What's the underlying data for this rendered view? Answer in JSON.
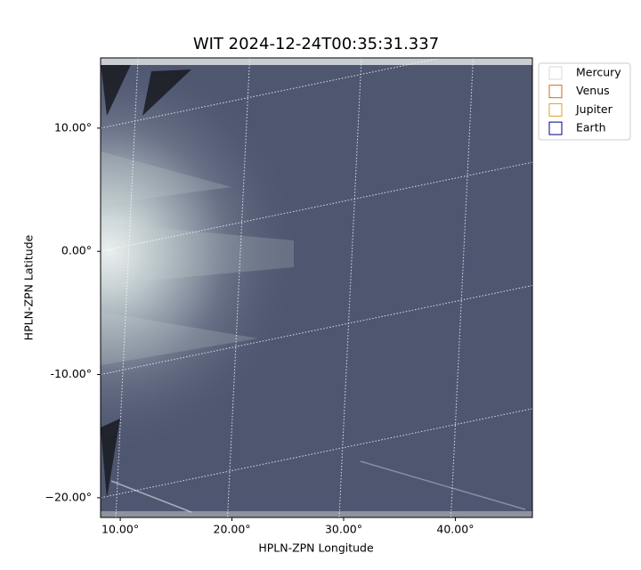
{
  "chart_data": {
    "type": "image",
    "title": "WIT 2024-12-24T00:35:31.337",
    "xlabel": "HPLN-ZPN Longitude",
    "ylabel": "HPLN-ZPN Latitude",
    "xlim": [
      8.24,
      46.9
    ],
    "ylim": [
      -21.6,
      15.7
    ],
    "xticks": [
      {
        "value": 10,
        "label": "10.00°"
      },
      {
        "value": 20,
        "label": "20.00°"
      },
      {
        "value": 30,
        "label": "30.00°"
      },
      {
        "value": 40,
        "label": "40.00°"
      }
    ],
    "yticks": [
      {
        "value": 10,
        "label": "10.00°"
      },
      {
        "value": 0,
        "label": "0.00°"
      },
      {
        "value": -10,
        "label": "-10.00°"
      },
      {
        "value": -20,
        "label": "−20.00°"
      }
    ],
    "grid": true,
    "legend": "outside upper right",
    "series": [
      {
        "name": "Mercury",
        "color": "#d9d9d9"
      },
      {
        "name": "Venus",
        "color": "#d2691e"
      },
      {
        "name": "Jupiter",
        "color": "#daa520"
      },
      {
        "name": "Earth",
        "color": "#000080"
      }
    ]
  }
}
